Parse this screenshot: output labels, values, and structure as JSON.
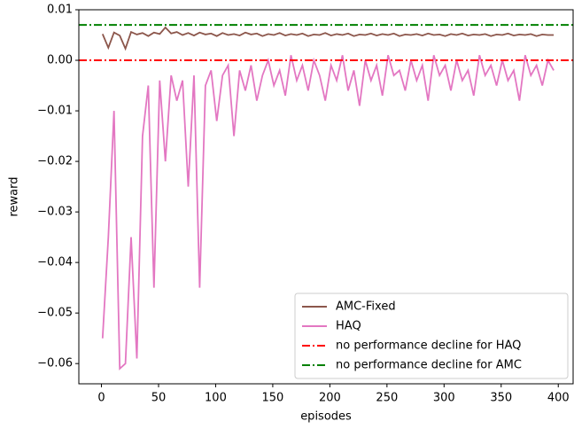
{
  "chart_data": {
    "type": "line",
    "x_label": "episodes",
    "y_label": "reward",
    "xlim": [
      -19.8,
      413
    ],
    "ylim": [
      -0.064,
      0.01
    ],
    "xticks": [
      0,
      50,
      100,
      150,
      200,
      250,
      300,
      350,
      400
    ],
    "yticks": [
      {
        "value": 0.01,
        "label": "0.01"
      },
      {
        "value": 0,
        "label": "0.00"
      },
      {
        "value": -0.01,
        "label": "−0.01"
      },
      {
        "value": -0.02,
        "label": "−0.02"
      },
      {
        "value": -0.03,
        "label": "−0.03"
      },
      {
        "value": -0.04,
        "label": "−0.04"
      },
      {
        "value": -0.05,
        "label": "−0.05"
      },
      {
        "value": -0.06,
        "label": "−0.06"
      }
    ],
    "x": [
      1,
      6,
      11,
      16,
      21,
      26,
      31,
      36,
      41,
      46,
      51,
      56,
      61,
      66,
      71,
      76,
      81,
      86,
      91,
      96,
      101,
      106,
      111,
      116,
      121,
      126,
      131,
      136,
      141,
      146,
      151,
      156,
      161,
      166,
      171,
      176,
      181,
      186,
      191,
      196,
      201,
      206,
      211,
      216,
      221,
      226,
      231,
      236,
      241,
      246,
      251,
      256,
      261,
      266,
      271,
      276,
      281,
      286,
      291,
      296,
      301,
      306,
      311,
      316,
      321,
      326,
      331,
      336,
      341,
      346,
      351,
      356,
      361,
      366,
      371,
      376,
      381,
      386,
      391,
      396
    ],
    "series": [
      {
        "name": "AMC-Fixed",
        "color": "#8c564b",
        "values": [
          0.0052,
          0.0025,
          0.0055,
          0.0049,
          0.0023,
          0.0056,
          0.0051,
          0.0054,
          0.0048,
          0.0055,
          0.0052,
          0.0065,
          0.0053,
          0.0056,
          0.005,
          0.0054,
          0.0049,
          0.0055,
          0.0051,
          0.0053,
          0.0048,
          0.0054,
          0.005,
          0.0052,
          0.0049,
          0.0055,
          0.0051,
          0.0053,
          0.0048,
          0.0052,
          0.005,
          0.0054,
          0.0049,
          0.0052,
          0.005,
          0.0053,
          0.0048,
          0.0051,
          0.005,
          0.0054,
          0.0049,
          0.0052,
          0.005,
          0.0053,
          0.0048,
          0.0051,
          0.005,
          0.0053,
          0.0049,
          0.0052,
          0.005,
          0.0053,
          0.0048,
          0.0051,
          0.005,
          0.0052,
          0.0049,
          0.0053,
          0.005,
          0.0051,
          0.0048,
          0.0052,
          0.005,
          0.0053,
          0.0049,
          0.0051,
          0.005,
          0.0052,
          0.0048,
          0.0051,
          0.005,
          0.0053,
          0.0049,
          0.0051,
          0.005,
          0.0052,
          0.0048,
          0.0051,
          0.005,
          0.005
        ]
      },
      {
        "name": "HAQ",
        "color": "#e377c2",
        "values": [
          -0.055,
          -0.035,
          -0.01,
          -0.061,
          -0.06,
          -0.035,
          -0.059,
          -0.015,
          -0.005,
          -0.045,
          -0.004,
          -0.02,
          -0.003,
          -0.008,
          -0.004,
          -0.025,
          -0.003,
          -0.045,
          -0.005,
          -0.002,
          -0.012,
          -0.003,
          -0.001,
          -0.015,
          -0.002,
          -0.006,
          -0.001,
          -0.008,
          -0.003,
          0,
          -0.005,
          -0.002,
          -0.007,
          0.001,
          -0.004,
          -0.001,
          -0.006,
          0,
          -0.003,
          -0.008,
          -0.001,
          -0.004,
          0.001,
          -0.006,
          -0.002,
          -0.009,
          0,
          -0.004,
          -0.001,
          -0.007,
          0.001,
          -0.003,
          -0.002,
          -0.006,
          0,
          -0.004,
          -0.001,
          -0.008,
          0.001,
          -0.003,
          -0.001,
          -0.006,
          0,
          -0.004,
          -0.002,
          -0.007,
          0.001,
          -0.003,
          -0.001,
          -0.005,
          0,
          -0.004,
          -0.002,
          -0.008,
          0.001,
          -0.003,
          -0.001,
          -0.005,
          0,
          -0.002
        ]
      }
    ],
    "reference_lines": [
      {
        "name": "no performance decline for HAQ",
        "color": "#ff0000",
        "value": 0
      },
      {
        "name": "no performance decline for AMC",
        "color": "#008000",
        "value": 0.007
      }
    ],
    "legend": "lower right"
  }
}
